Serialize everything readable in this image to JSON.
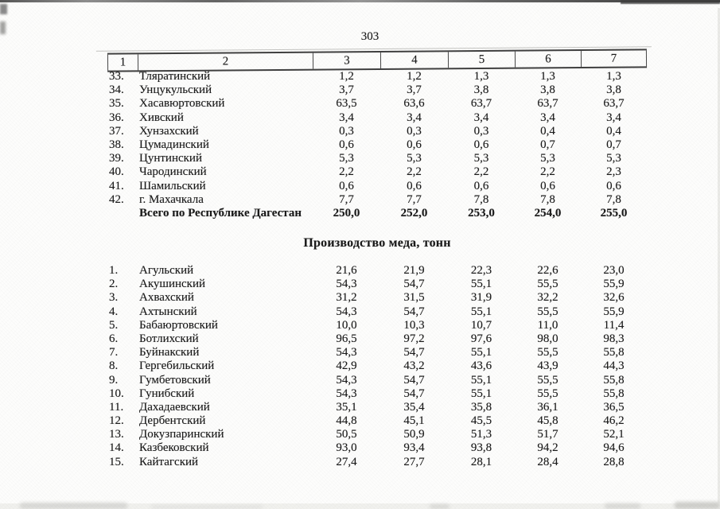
{
  "page": {
    "number": "303"
  },
  "table1": {
    "columns": [
      "1",
      "2",
      "3",
      "4",
      "5",
      "6",
      "7"
    ],
    "rows": [
      {
        "num": "33.",
        "name": "Тляратинский",
        "values": [
          "1,2",
          "1,2",
          "1,3",
          "1,3",
          "1,3"
        ]
      },
      {
        "num": "34.",
        "name": "Унцукульский",
        "values": [
          "3,7",
          "3,7",
          "3,8",
          "3,8",
          "3,8"
        ]
      },
      {
        "num": "35.",
        "name": "Хасавюртовский",
        "values": [
          "63,5",
          "63,6",
          "63,7",
          "63,7",
          "63,7"
        ]
      },
      {
        "num": "36.",
        "name": "Хивский",
        "values": [
          "3,4",
          "3,4",
          "3,4",
          "3,4",
          "3,4"
        ]
      },
      {
        "num": "37.",
        "name": "Хунзахский",
        "values": [
          "0,3",
          "0,3",
          "0,3",
          "0,4",
          "0,4"
        ]
      },
      {
        "num": "38.",
        "name": "Цумадинский",
        "values": [
          "0,6",
          "0,6",
          "0,6",
          "0,7",
          "0,7"
        ]
      },
      {
        "num": "39.",
        "name": "Цунтинский",
        "values": [
          "5,3",
          "5,3",
          "5,3",
          "5,3",
          "5,3"
        ]
      },
      {
        "num": "40.",
        "name": "Чародинский",
        "values": [
          "2,2",
          "2,2",
          "2,2",
          "2,2",
          "2,3"
        ]
      },
      {
        "num": "41.",
        "name": "Шамильский",
        "values": [
          "0,6",
          "0,6",
          "0,6",
          "0,6",
          "0,6"
        ]
      },
      {
        "num": "42.",
        "name": "г. Махачкала",
        "values": [
          "7,7",
          "7,7",
          "7,8",
          "7,8",
          "7,8"
        ]
      }
    ],
    "total": {
      "label": "Всего по Республике Дагестан",
      "values": [
        "250,0",
        "252,0",
        "253,0",
        "254,0",
        "255,0"
      ]
    }
  },
  "section2": {
    "title": "Производство меда, тонн",
    "rows": [
      {
        "num": "1.",
        "name": "Агульский",
        "values": [
          "21,6",
          "21,9",
          "22,3",
          "22,6",
          "23,0"
        ]
      },
      {
        "num": "2.",
        "name": "Акушинский",
        "values": [
          "54,3",
          "54,7",
          "55,1",
          "55,5",
          "55,9"
        ]
      },
      {
        "num": "3.",
        "name": "Ахвахский",
        "values": [
          "31,2",
          "31,5",
          "31,9",
          "32,2",
          "32,6"
        ]
      },
      {
        "num": "4.",
        "name": "Ахтынский",
        "values": [
          "54,3",
          "54,7",
          "55,1",
          "55,5",
          "55,9"
        ]
      },
      {
        "num": "5.",
        "name": "Бабаюртовский",
        "values": [
          "10,0",
          "10,3",
          "10,7",
          "11,0",
          "11,4"
        ]
      },
      {
        "num": "6.",
        "name": "Ботлихский",
        "values": [
          "96,5",
          "97,2",
          "97,6",
          "98,0",
          "98,3"
        ]
      },
      {
        "num": "7.",
        "name": "Буйнакский",
        "values": [
          "54,3",
          "54,7",
          "55,1",
          "55,5",
          "55,8"
        ]
      },
      {
        "num": "8.",
        "name": "Гергебильский",
        "values": [
          "42,9",
          "43,2",
          "43,6",
          "43,9",
          "44,3"
        ]
      },
      {
        "num": "9.",
        "name": "Гумбетовский",
        "values": [
          "54,3",
          "54,7",
          "55,1",
          "55,5",
          "55,8"
        ]
      },
      {
        "num": "10.",
        "name": "Гунибский",
        "values": [
          "54,3",
          "54,7",
          "55,1",
          "55,5",
          "55,8"
        ]
      },
      {
        "num": "11.",
        "name": "Дахадаевский",
        "values": [
          "35,1",
          "35,4",
          "35,8",
          "36,1",
          "36,5"
        ]
      },
      {
        "num": "12.",
        "name": "Дербентский",
        "values": [
          "44,8",
          "45,1",
          "45,5",
          "45,8",
          "46,2"
        ]
      },
      {
        "num": "13.",
        "name": "Докузпаринский",
        "values": [
          "50,5",
          "50,9",
          "51,3",
          "51,7",
          "52,1"
        ]
      },
      {
        "num": "14.",
        "name": "Казбековский",
        "values": [
          "93,0",
          "93,4",
          "93,8",
          "94,2",
          "94,6"
        ]
      },
      {
        "num": "15.",
        "name": "Кайтагский",
        "values": [
          "27,4",
          "27,7",
          "28,1",
          "28,4",
          "28,8"
        ]
      }
    ]
  }
}
